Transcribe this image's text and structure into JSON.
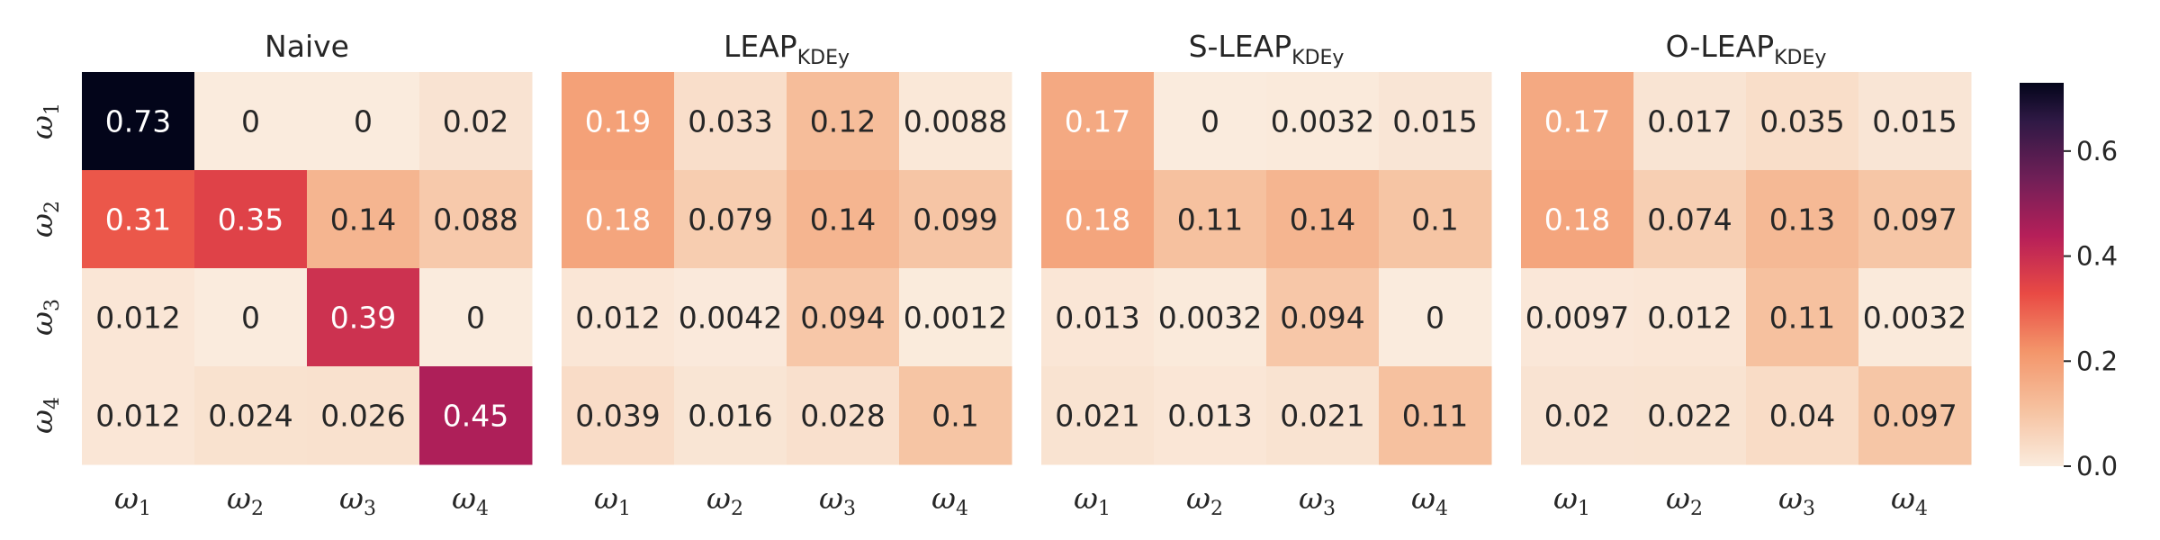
{
  "chart_data": {
    "type": "heatmap",
    "colormap": "rocket_r",
    "vmin": 0,
    "vmax": 0.73,
    "row_labels": [
      {
        "main": "ω",
        "sub": "1"
      },
      {
        "main": "ω",
        "sub": "2"
      },
      {
        "main": "ω",
        "sub": "3"
      },
      {
        "main": "ω",
        "sub": "4"
      }
    ],
    "col_labels": [
      {
        "main": "ω",
        "sub": "1"
      },
      {
        "main": "ω",
        "sub": "2"
      },
      {
        "main": "ω",
        "sub": "3"
      },
      {
        "main": "ω",
        "sub": "4"
      }
    ],
    "panels": [
      {
        "title": "Naive",
        "title_sub": "",
        "values": [
          [
            0.73,
            0,
            0,
            0.02
          ],
          [
            0.31,
            0.35,
            0.14,
            0.088
          ],
          [
            0.012,
            0,
            0.39,
            0
          ],
          [
            0.012,
            0.024,
            0.026,
            0.45
          ]
        ],
        "labels": [
          [
            "0.73",
            "0",
            "0",
            "0.02"
          ],
          [
            "0.31",
            "0.35",
            "0.14",
            "0.088"
          ],
          [
            "0.012",
            "0",
            "0.39",
            "0"
          ],
          [
            "0.012",
            "0.024",
            "0.026",
            "0.45"
          ]
        ]
      },
      {
        "title": "LEAP",
        "title_sub": "KDEy",
        "values": [
          [
            0.19,
            0.033,
            0.12,
            0.0088
          ],
          [
            0.18,
            0.079,
            0.14,
            0.099
          ],
          [
            0.012,
            0.0042,
            0.094,
            0.0012
          ],
          [
            0.039,
            0.016,
            0.028,
            0.1
          ]
        ],
        "labels": [
          [
            "0.19",
            "0.033",
            "0.12",
            "0.0088"
          ],
          [
            "0.18",
            "0.079",
            "0.14",
            "0.099"
          ],
          [
            "0.012",
            "0.0042",
            "0.094",
            "0.0012"
          ],
          [
            "0.039",
            "0.016",
            "0.028",
            "0.1"
          ]
        ]
      },
      {
        "title": "S-LEAP",
        "title_sub": "KDEy",
        "values": [
          [
            0.17,
            0,
            0.0032,
            0.015
          ],
          [
            0.18,
            0.11,
            0.14,
            0.1
          ],
          [
            0.013,
            0.0032,
            0.094,
            0
          ],
          [
            0.021,
            0.013,
            0.021,
            0.11
          ]
        ],
        "labels": [
          [
            "0.17",
            "0",
            "0.0032",
            "0.015"
          ],
          [
            "0.18",
            "0.11",
            "0.14",
            "0.1"
          ],
          [
            "0.013",
            "0.0032",
            "0.094",
            "0"
          ],
          [
            "0.021",
            "0.013",
            "0.021",
            "0.11"
          ]
        ]
      },
      {
        "title": "O-LEAP",
        "title_sub": "KDEy",
        "values": [
          [
            0.17,
            0.017,
            0.035,
            0.015
          ],
          [
            0.18,
            0.074,
            0.13,
            0.097
          ],
          [
            0.0097,
            0.012,
            0.11,
            0.0032
          ],
          [
            0.02,
            0.022,
            0.04,
            0.097
          ]
        ],
        "labels": [
          [
            "0.17",
            "0.017",
            "0.035",
            "0.015"
          ],
          [
            "0.18",
            "0.074",
            "0.13",
            "0.097"
          ],
          [
            "0.0097",
            "0.012",
            "0.11",
            "0.0032"
          ],
          [
            "0.02",
            "0.022",
            "0.04",
            "0.097"
          ]
        ]
      }
    ],
    "colorbar": {
      "ticks": [
        0.0,
        0.2,
        0.4,
        0.6
      ],
      "tick_labels": [
        "0.0",
        "0.2",
        "0.4",
        "0.6"
      ]
    }
  }
}
